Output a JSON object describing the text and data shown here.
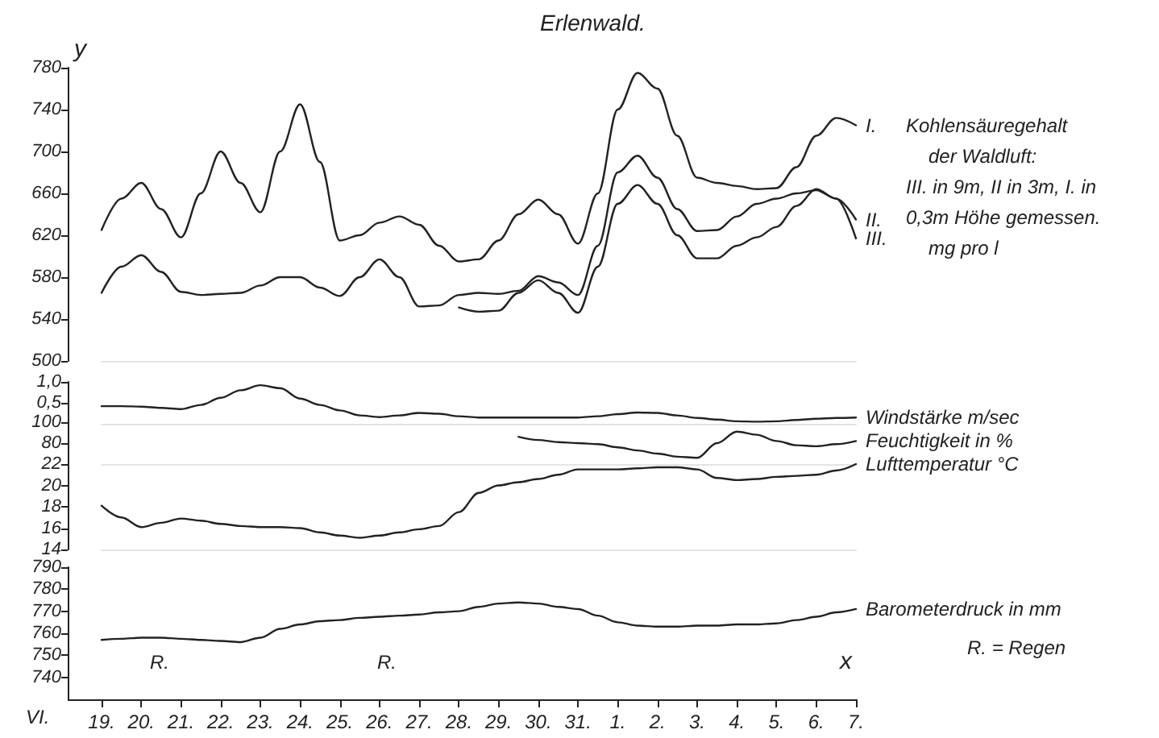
{
  "chart_data": [
    {
      "type": "line",
      "title": "Erlenwald.",
      "ylabel": "y",
      "marker": "none",
      "line_style": "solid",
      "tick_labels": "y",
      "ylim": [
        500,
        780
      ],
      "yticks": [
        500,
        540,
        580,
        620,
        660,
        700,
        740,
        780
      ],
      "categories": [
        "19.",
        null,
        "20.",
        null,
        "21.",
        null,
        "22.",
        null,
        "23.",
        null,
        "24.",
        null,
        "25.",
        null,
        "26.",
        null,
        "27.",
        null,
        "28.",
        null,
        "29.",
        null,
        "30.",
        null,
        "31.",
        null,
        "1.",
        null,
        "2.",
        null,
        "3.",
        null,
        "4.",
        null,
        "5.",
        null,
        "6.",
        null,
        "7."
      ],
      "annotations": [
        "Kohlensäuregehalt",
        "der Waldluft:",
        "III. in 9m, II in 3m, I. in",
        "0,3m Höhe gemessen.",
        "mg pro l"
      ],
      "series": [
        {
          "name": "I.",
          "color": "#222222",
          "values": [
            625,
            655,
            670,
            645,
            618,
            660,
            700,
            670,
            642,
            700,
            745,
            690,
            615,
            620,
            632,
            638,
            630,
            610,
            595,
            597,
            615,
            640,
            654,
            640,
            612,
            660,
            740,
            775,
            760,
            715,
            675,
            670,
            667,
            664,
            665,
            685,
            715,
            732,
            725
          ]
        },
        {
          "name": "II.",
          "color": "#222222",
          "values": [
            565,
            590,
            601,
            585,
            566,
            563,
            564,
            565,
            572,
            580,
            580,
            570,
            562,
            580,
            597,
            580,
            552,
            553,
            563,
            565,
            564,
            567,
            581,
            575,
            563,
            610,
            680,
            696,
            675,
            645,
            624,
            625,
            638,
            650,
            655,
            660,
            663,
            655,
            635
          ]
        },
        {
          "name": "III.",
          "color": "#222222",
          "values": [
            null,
            null,
            null,
            null,
            null,
            null,
            null,
            null,
            null,
            null,
            null,
            null,
            null,
            null,
            null,
            null,
            null,
            null,
            551,
            547,
            548,
            565,
            577,
            565,
            546,
            590,
            650,
            668,
            650,
            620,
            598,
            598,
            610,
            618,
            628,
            648,
            664,
            655,
            617
          ]
        }
      ]
    },
    {
      "type": "line",
      "marker": "none",
      "line_style": "solid",
      "tick_labels": "y",
      "ylim": [
        0,
        1
      ],
      "yticks": [
        {
          "value": 0.5,
          "label": "0,5"
        },
        {
          "value": 1,
          "label": "1,0"
        }
      ],
      "categories": [
        "19.",
        null,
        "20.",
        null,
        "21.",
        null,
        "22.",
        null,
        "23.",
        null,
        "24.",
        null,
        "25.",
        null,
        "26.",
        null,
        "27.",
        null,
        "28.",
        null,
        "29.",
        null,
        "30.",
        null,
        "31.",
        null,
        "1.",
        null,
        "2.",
        null,
        "3.",
        null,
        "4.",
        null,
        "5.",
        null,
        "6.",
        null,
        "7."
      ],
      "series": [
        {
          "name": "Windstärke m/sec",
          "color": "#222222",
          "values": [
            0.42,
            0.42,
            0.41,
            0.38,
            0.35,
            0.45,
            0.62,
            0.8,
            0.92,
            0.85,
            0.6,
            0.45,
            0.32,
            0.2,
            0.16,
            0.2,
            0.26,
            0.24,
            0.18,
            0.15,
            0.15,
            0.15,
            0.15,
            0.15,
            0.15,
            0.18,
            0.23,
            0.27,
            0.26,
            0.2,
            0.14,
            0.1,
            0.06,
            0.05,
            0.06,
            0.09,
            0.12,
            0.14,
            0.15
          ]
        }
      ]
    },
    {
      "type": "line",
      "marker": "none",
      "line_style": "solid",
      "tick_labels": "y",
      "ylim": [
        60,
        100
      ],
      "yticks": [
        80,
        100
      ],
      "categories": [
        "19.",
        null,
        "20.",
        null,
        "21.",
        null,
        "22.",
        null,
        "23.",
        null,
        "24.",
        null,
        "25.",
        null,
        "26.",
        null,
        "27.",
        null,
        "28.",
        null,
        "29.",
        null,
        "30.",
        null,
        "31.",
        null,
        "1.",
        null,
        "2.",
        null,
        "3.",
        null,
        "4.",
        null,
        "5.",
        null,
        "6.",
        null,
        "7."
      ],
      "series": [
        {
          "name": "Feuchtigkeit in %",
          "color": "#222222",
          "values": [
            null,
            null,
            null,
            null,
            null,
            null,
            null,
            null,
            null,
            null,
            null,
            null,
            null,
            null,
            null,
            null,
            null,
            null,
            null,
            null,
            null,
            86,
            83,
            81,
            80,
            79,
            76,
            73,
            70,
            67,
            66,
            80,
            91,
            88,
            82,
            78,
            77,
            79,
            82
          ]
        }
      ]
    },
    {
      "type": "line",
      "marker": "none",
      "line_style": "solid",
      "tick_labels": "y",
      "ylim": [
        14,
        22
      ],
      "yticks": [
        14,
        16,
        18,
        20,
        22
      ],
      "categories": [
        "19.",
        null,
        "20.",
        null,
        "21.",
        null,
        "22.",
        null,
        "23.",
        null,
        "24.",
        null,
        "25.",
        null,
        "26.",
        null,
        "27.",
        null,
        "28.",
        null,
        "29.",
        null,
        "30.",
        null,
        "31.",
        null,
        "1.",
        null,
        "2.",
        null,
        "3.",
        null,
        "4.",
        null,
        "5.",
        null,
        "6.",
        null,
        "7."
      ],
      "series": [
        {
          "name": "Lufttemperatur °C",
          "color": "#222222",
          "values": [
            18.1,
            17,
            16.1,
            16.5,
            16.9,
            16.7,
            16.4,
            16.2,
            16.1,
            16.1,
            16,
            15.6,
            15.3,
            15.1,
            15.3,
            15.6,
            15.9,
            16.2,
            17.5,
            19.3,
            20,
            20.3,
            20.6,
            21,
            21.5,
            21.5,
            21.5,
            21.6,
            21.7,
            21.7,
            21.5,
            20.7,
            20.5,
            20.6,
            20.8,
            20.9,
            21,
            21.4,
            22
          ]
        }
      ]
    },
    {
      "type": "line",
      "xlabel": "x",
      "marker": "none",
      "line_style": "solid",
      "ylim": [
        730,
        790
      ],
      "yticks": [
        740,
        750,
        760,
        770,
        780,
        790
      ],
      "categories": [
        "19.",
        null,
        "20.",
        null,
        "21.",
        null,
        "22.",
        null,
        "23.",
        null,
        "24.",
        null,
        "25.",
        null,
        "26.",
        null,
        "27.",
        null,
        "28.",
        null,
        "29.",
        null,
        "30.",
        null,
        "31.",
        null,
        "1.",
        null,
        "2.",
        null,
        "3.",
        null,
        "4.",
        null,
        "5.",
        null,
        "6.",
        null,
        "7."
      ],
      "annotations": [
        "R. = Regen",
        "VI.",
        "R.",
        "R."
      ],
      "series": [
        {
          "name": "Barometerdruck in mm",
          "color": "#222222",
          "values": [
            757,
            757.5,
            758,
            758,
            757.5,
            757,
            756.5,
            756,
            758,
            762,
            764,
            765.5,
            766,
            767,
            767.5,
            768,
            768.5,
            769.5,
            770,
            772,
            773.5,
            774,
            773.5,
            772,
            771,
            768,
            765,
            763.5,
            763,
            763,
            763.5,
            763.5,
            764,
            764,
            764.5,
            766,
            767.5,
            769.5,
            771
          ]
        }
      ]
    }
  ]
}
